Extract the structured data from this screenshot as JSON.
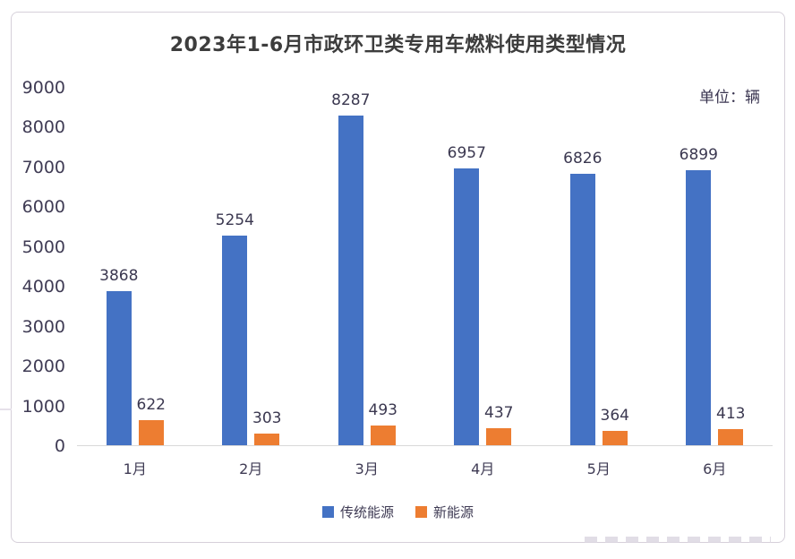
{
  "title": "2023年1-6月市政环卫类专用车燃料使用类型情况",
  "unit_label": "单位：辆",
  "chart_data": {
    "type": "bar",
    "title": "2023年1-6月市政环卫类专用车燃料使用类型情况",
    "unit": "单位：辆",
    "categories": [
      "1月",
      "2月",
      "3月",
      "4月",
      "5月",
      "6月"
    ],
    "series": [
      {
        "name": "传统能源",
        "color": "#4472c4",
        "values": [
          3868,
          5254,
          8287,
          6957,
          6826,
          6899
        ]
      },
      {
        "name": "新能源",
        "color": "#ed7d31",
        "values": [
          622,
          303,
          493,
          437,
          364,
          413
        ]
      }
    ],
    "xlabel": "",
    "ylabel": "",
    "ylim": [
      0,
      9000
    ],
    "ytick_step": 1000,
    "yticks": [
      0,
      1000,
      2000,
      3000,
      4000,
      5000,
      6000,
      7000,
      8000,
      9000
    ],
    "grid": false,
    "legend_position": "bottom",
    "data_labels": true
  },
  "colors": {
    "traditional": "#4472c4",
    "new_energy": "#ed7d31",
    "axis_line": "#d9d9d9",
    "axis_text": "#3f3b54",
    "title_text": "#3d3d3d",
    "card_border": "#d6d0da"
  }
}
